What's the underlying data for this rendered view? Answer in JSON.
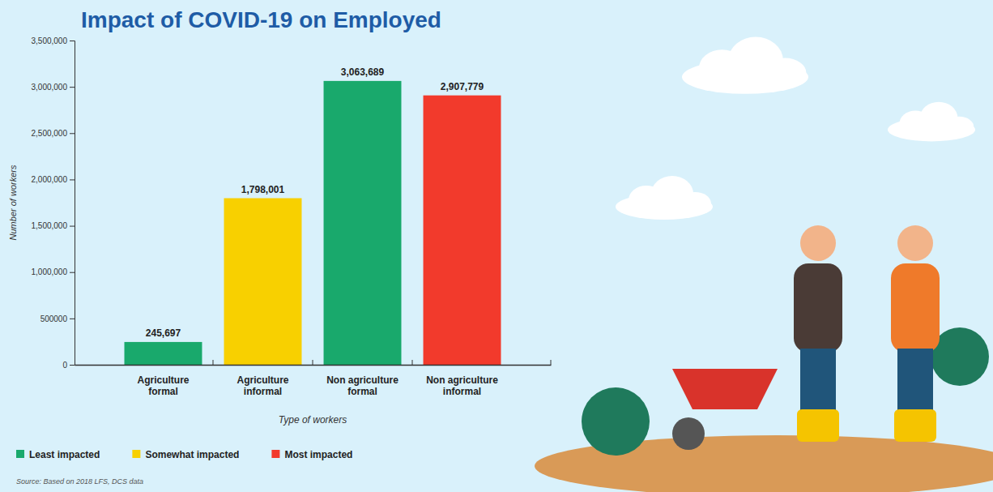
{
  "chart_data": {
    "type": "bar",
    "title": "Impact of COVID-19 on Employed",
    "x_label": "Type of workers",
    "y_label": "Number of workers",
    "source": "Source: Based on 2018 LFS, DCS data",
    "categories": [
      "Agriculture formal",
      "Agriculture informal",
      "Non agriculture formal",
      "Non agriculture informal"
    ],
    "series": [
      {
        "name": "Least impacted",
        "color": "#19a96c",
        "values": [
          245697,
          null,
          3063689,
          null
        ],
        "value_labels": [
          "245,697",
          null,
          "3,063,689",
          null
        ]
      },
      {
        "name": "Somewhat impacted",
        "color": "#f8d000",
        "values": [
          null,
          1798001,
          null,
          null
        ],
        "value_labels": [
          null,
          "1,798,001",
          null,
          null
        ]
      },
      {
        "name": "Most impacted",
        "color": "#f23a2c",
        "values": [
          null,
          null,
          null,
          2907779
        ],
        "value_labels": [
          null,
          null,
          null,
          "2,907,779"
        ]
      }
    ],
    "ylim": [
      0,
      3500000
    ],
    "yticks": [
      0,
      500000,
      {
        "value": 1000000,
        "label": "1,000,000"
      },
      {
        "value": 1500000,
        "label": "1,500,000"
      },
      {
        "value": 2000000,
        "label": "2,000,000"
      },
      {
        "value": 2500000,
        "label": "2,500,000"
      },
      {
        "value": 3000000,
        "label": "3,000,000"
      },
      {
        "value": 3500000,
        "label": "3,500,000"
      }
    ],
    "grid": false,
    "legend": "bottom-left",
    "data_labels": true
  }
}
